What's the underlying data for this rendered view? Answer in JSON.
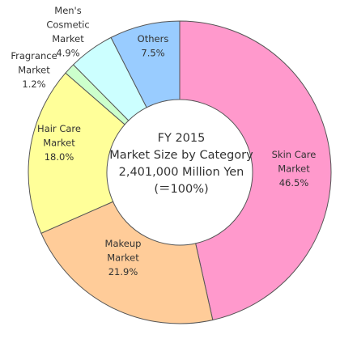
{
  "chart_data": {
    "type": "pie",
    "title": "",
    "center_text": [
      "FY 2015",
      "Market Size by Category",
      "2,401,000 Million Yen",
      "(＝100%)"
    ],
    "slices": [
      {
        "label": [
          "Skin Care",
          "Market"
        ],
        "pct_text": "46.5%",
        "value": 46.5,
        "color": "#ff99cc"
      },
      {
        "label": [
          "Makeup",
          "Market"
        ],
        "pct_text": "21.9%",
        "value": 21.9,
        "color": "#ffcc99"
      },
      {
        "label": [
          "Hair Care",
          "Market"
        ],
        "pct_text": "18.0%",
        "value": 18.0,
        "color": "#ffff99"
      },
      {
        "label": [
          "Fragrance",
          "Market"
        ],
        "pct_text": "1.2%",
        "value": 1.2,
        "color": "#ccffcc"
      },
      {
        "label": [
          "Men's",
          "Cosmetic",
          "Market"
        ],
        "pct_text": "4.9%",
        "value": 4.9,
        "color": "#ccffff"
      },
      {
        "label": [
          "Others"
        ],
        "pct_text": "7.5%",
        "value": 7.5,
        "color": "#99ccff"
      }
    ]
  }
}
